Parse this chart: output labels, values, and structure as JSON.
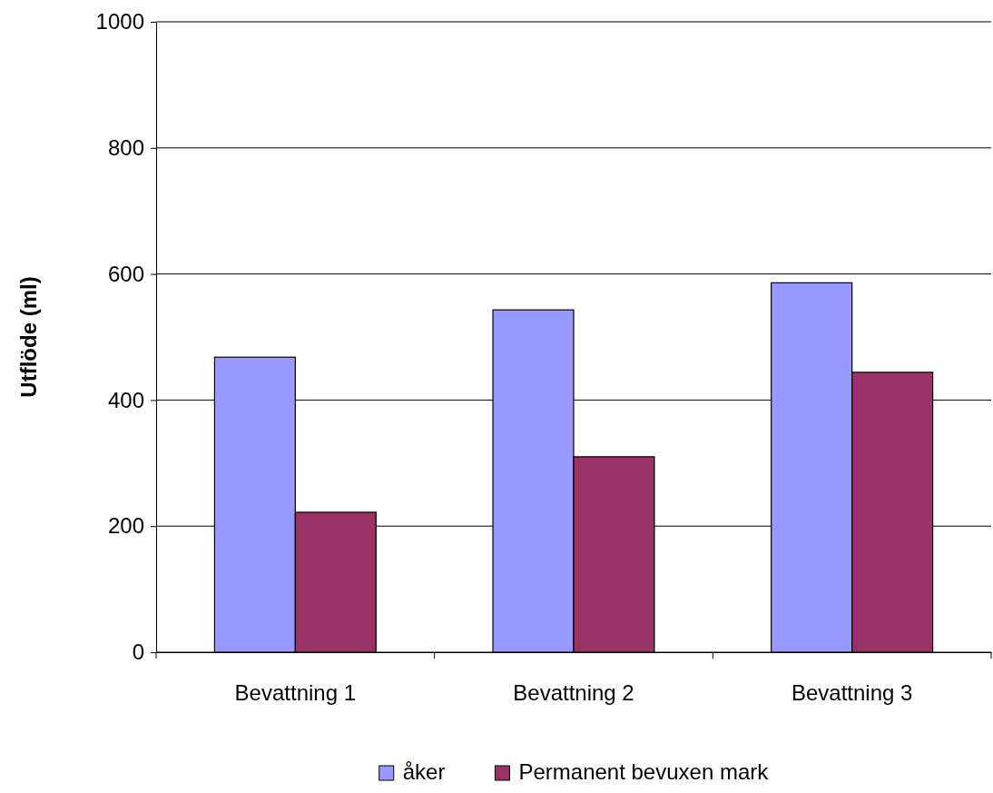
{
  "chart_data": {
    "type": "bar",
    "ylabel": "Utflöde (ml)",
    "categories": [
      "Bevattning 1",
      "Bevattning 2",
      "Bevattning 3"
    ],
    "series": [
      {
        "name": "åker",
        "color": "#9999ff",
        "values": [
          468,
          543,
          586
        ]
      },
      {
        "name": "Permanent bevuxen mark",
        "color": "#993366",
        "values": [
          222,
          310,
          444
        ]
      }
    ],
    "ylim": [
      0,
      1000
    ],
    "yticks": [
      0,
      200,
      400,
      600,
      800,
      1000
    ],
    "grid": "y",
    "legend": "bottom"
  }
}
